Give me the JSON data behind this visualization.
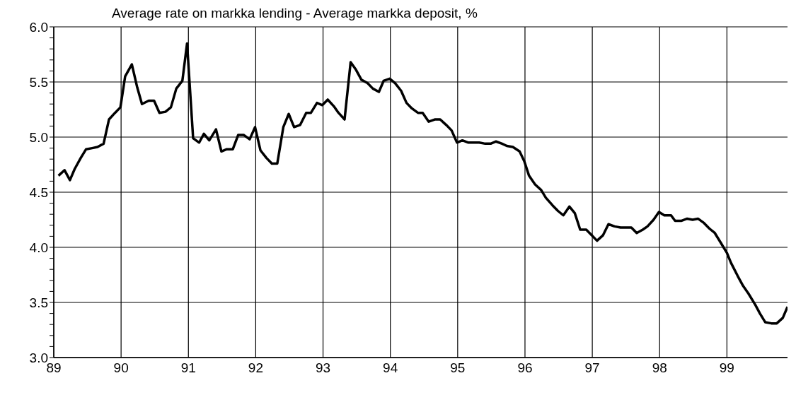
{
  "chart_data": {
    "type": "line",
    "title": "Average rate on markka lending - Average markka deposit, %",
    "x": [
      89.07,
      89.16,
      89.24,
      89.31,
      89.4,
      89.48,
      89.57,
      89.65,
      89.74,
      89.82,
      89.91,
      89.99,
      90.06,
      90.16,
      90.24,
      90.31,
      90.41,
      90.49,
      90.57,
      90.66,
      90.74,
      90.82,
      90.91,
      90.98,
      91.07,
      91.16,
      91.23,
      91.31,
      91.41,
      91.49,
      91.57,
      91.66,
      91.74,
      91.82,
      91.91,
      91.99,
      92.07,
      92.16,
      92.24,
      92.32,
      92.41,
      92.49,
      92.57,
      92.66,
      92.75,
      92.82,
      92.91,
      92.99,
      93.07,
      93.16,
      93.23,
      93.32,
      93.41,
      93.49,
      93.57,
      93.66,
      93.74,
      93.83,
      93.9,
      93.99,
      94.07,
      94.16,
      94.24,
      94.32,
      94.41,
      94.48,
      94.57,
      94.66,
      94.74,
      94.83,
      94.91,
      94.99,
      95.07,
      95.16,
      95.25,
      95.32,
      95.41,
      95.49,
      95.57,
      95.66,
      95.73,
      95.82,
      95.92,
      95.99,
      96.06,
      96.15,
      96.24,
      96.31,
      96.41,
      96.49,
      96.57,
      96.66,
      96.74,
      96.82,
      96.91,
      96.99,
      97.07,
      97.16,
      97.24,
      97.33,
      97.42,
      97.5,
      97.58,
      97.66,
      97.75,
      97.82,
      97.91,
      97.99,
      98.07,
      98.17,
      98.23,
      98.32,
      98.41,
      98.49,
      98.57,
      98.66,
      98.74,
      98.82,
      98.91,
      99.0,
      99.06,
      99.16,
      99.24,
      99.32,
      99.42,
      99.49,
      99.57,
      99.66,
      99.74,
      99.83,
      99.9
    ],
    "series": [
      {
        "color": "#000000",
        "values": [
          4.65,
          4.7,
          4.61,
          4.71,
          4.81,
          4.89,
          4.9,
          4.91,
          4.94,
          5.16,
          5.22,
          5.27,
          5.55,
          5.66,
          5.45,
          5.3,
          5.33,
          5.33,
          5.22,
          5.23,
          5.27,
          5.44,
          5.51,
          5.85,
          4.99,
          4.95,
          5.03,
          4.97,
          5.07,
          4.87,
          4.89,
          4.89,
          5.02,
          5.02,
          4.98,
          5.09,
          4.88,
          4.81,
          4.76,
          4.76,
          5.09,
          5.21,
          5.09,
          5.11,
          5.22,
          5.22,
          5.31,
          5.29,
          5.34,
          5.28,
          5.22,
          5.16,
          5.68,
          5.61,
          5.52,
          5.49,
          5.44,
          5.41,
          5.51,
          5.53,
          5.49,
          5.42,
          5.31,
          5.26,
          5.22,
          5.22,
          5.14,
          5.16,
          5.16,
          5.11,
          5.06,
          4.95,
          4.97,
          4.95,
          4.95,
          4.95,
          4.94,
          4.94,
          4.96,
          4.94,
          4.92,
          4.91,
          4.87,
          4.78,
          4.65,
          4.57,
          4.52,
          4.45,
          4.38,
          4.33,
          4.29,
          4.37,
          4.31,
          4.16,
          4.16,
          4.11,
          4.06,
          4.11,
          4.21,
          4.19,
          4.18,
          4.18,
          4.18,
          4.13,
          4.16,
          4.19,
          4.25,
          4.32,
          4.29,
          4.29,
          4.24,
          4.24,
          4.26,
          4.25,
          4.26,
          4.22,
          4.17,
          4.13,
          4.04,
          3.95,
          3.86,
          3.74,
          3.65,
          3.58,
          3.48,
          3.4,
          3.32,
          3.31,
          3.31,
          3.36,
          3.46
        ]
      }
    ],
    "xlim": [
      89,
      99.9
    ],
    "xticks": [
      89,
      90,
      91,
      92,
      93,
      94,
      95,
      96,
      97,
      98,
      99
    ],
    "ylim": [
      3,
      6
    ],
    "yticks": [
      {
        "value": 3,
        "label": "3.0"
      },
      {
        "value": 3.1,
        "label": null
      },
      {
        "value": 3.2,
        "label": null
      },
      {
        "value": 3.3,
        "label": null
      },
      {
        "value": 3.4,
        "label": null
      },
      {
        "value": 3.5,
        "label": "3.5"
      },
      {
        "value": 3.6,
        "label": null
      },
      {
        "value": 3.7,
        "label": null
      },
      {
        "value": 3.8,
        "label": null
      },
      {
        "value": 3.9,
        "label": null
      },
      {
        "value": 4,
        "label": "4.0"
      },
      {
        "value": 4.1,
        "label": null
      },
      {
        "value": 4.2,
        "label": null
      },
      {
        "value": 4.3,
        "label": null
      },
      {
        "value": 4.4,
        "label": null
      },
      {
        "value": 4.5,
        "label": "4.5"
      },
      {
        "value": 4.6,
        "label": null
      },
      {
        "value": 4.7,
        "label": null
      },
      {
        "value": 4.8,
        "label": null
      },
      {
        "value": 4.9,
        "label": null
      },
      {
        "value": 5,
        "label": "5.0"
      },
      {
        "value": 5.1,
        "label": null
      },
      {
        "value": 5.2,
        "label": null
      },
      {
        "value": 5.3,
        "label": null
      },
      {
        "value": 5.4,
        "label": null
      },
      {
        "value": 5.5,
        "label": "5.5"
      },
      {
        "value": 5.6,
        "label": null
      },
      {
        "value": 5.7,
        "label": null
      },
      {
        "value": 5.8,
        "label": null
      },
      {
        "value": 5.9,
        "label": null
      },
      {
        "value": 6,
        "label": "6.0"
      }
    ],
    "grid": true,
    "legend": false,
    "marker": "none",
    "line_style": "solid"
  }
}
